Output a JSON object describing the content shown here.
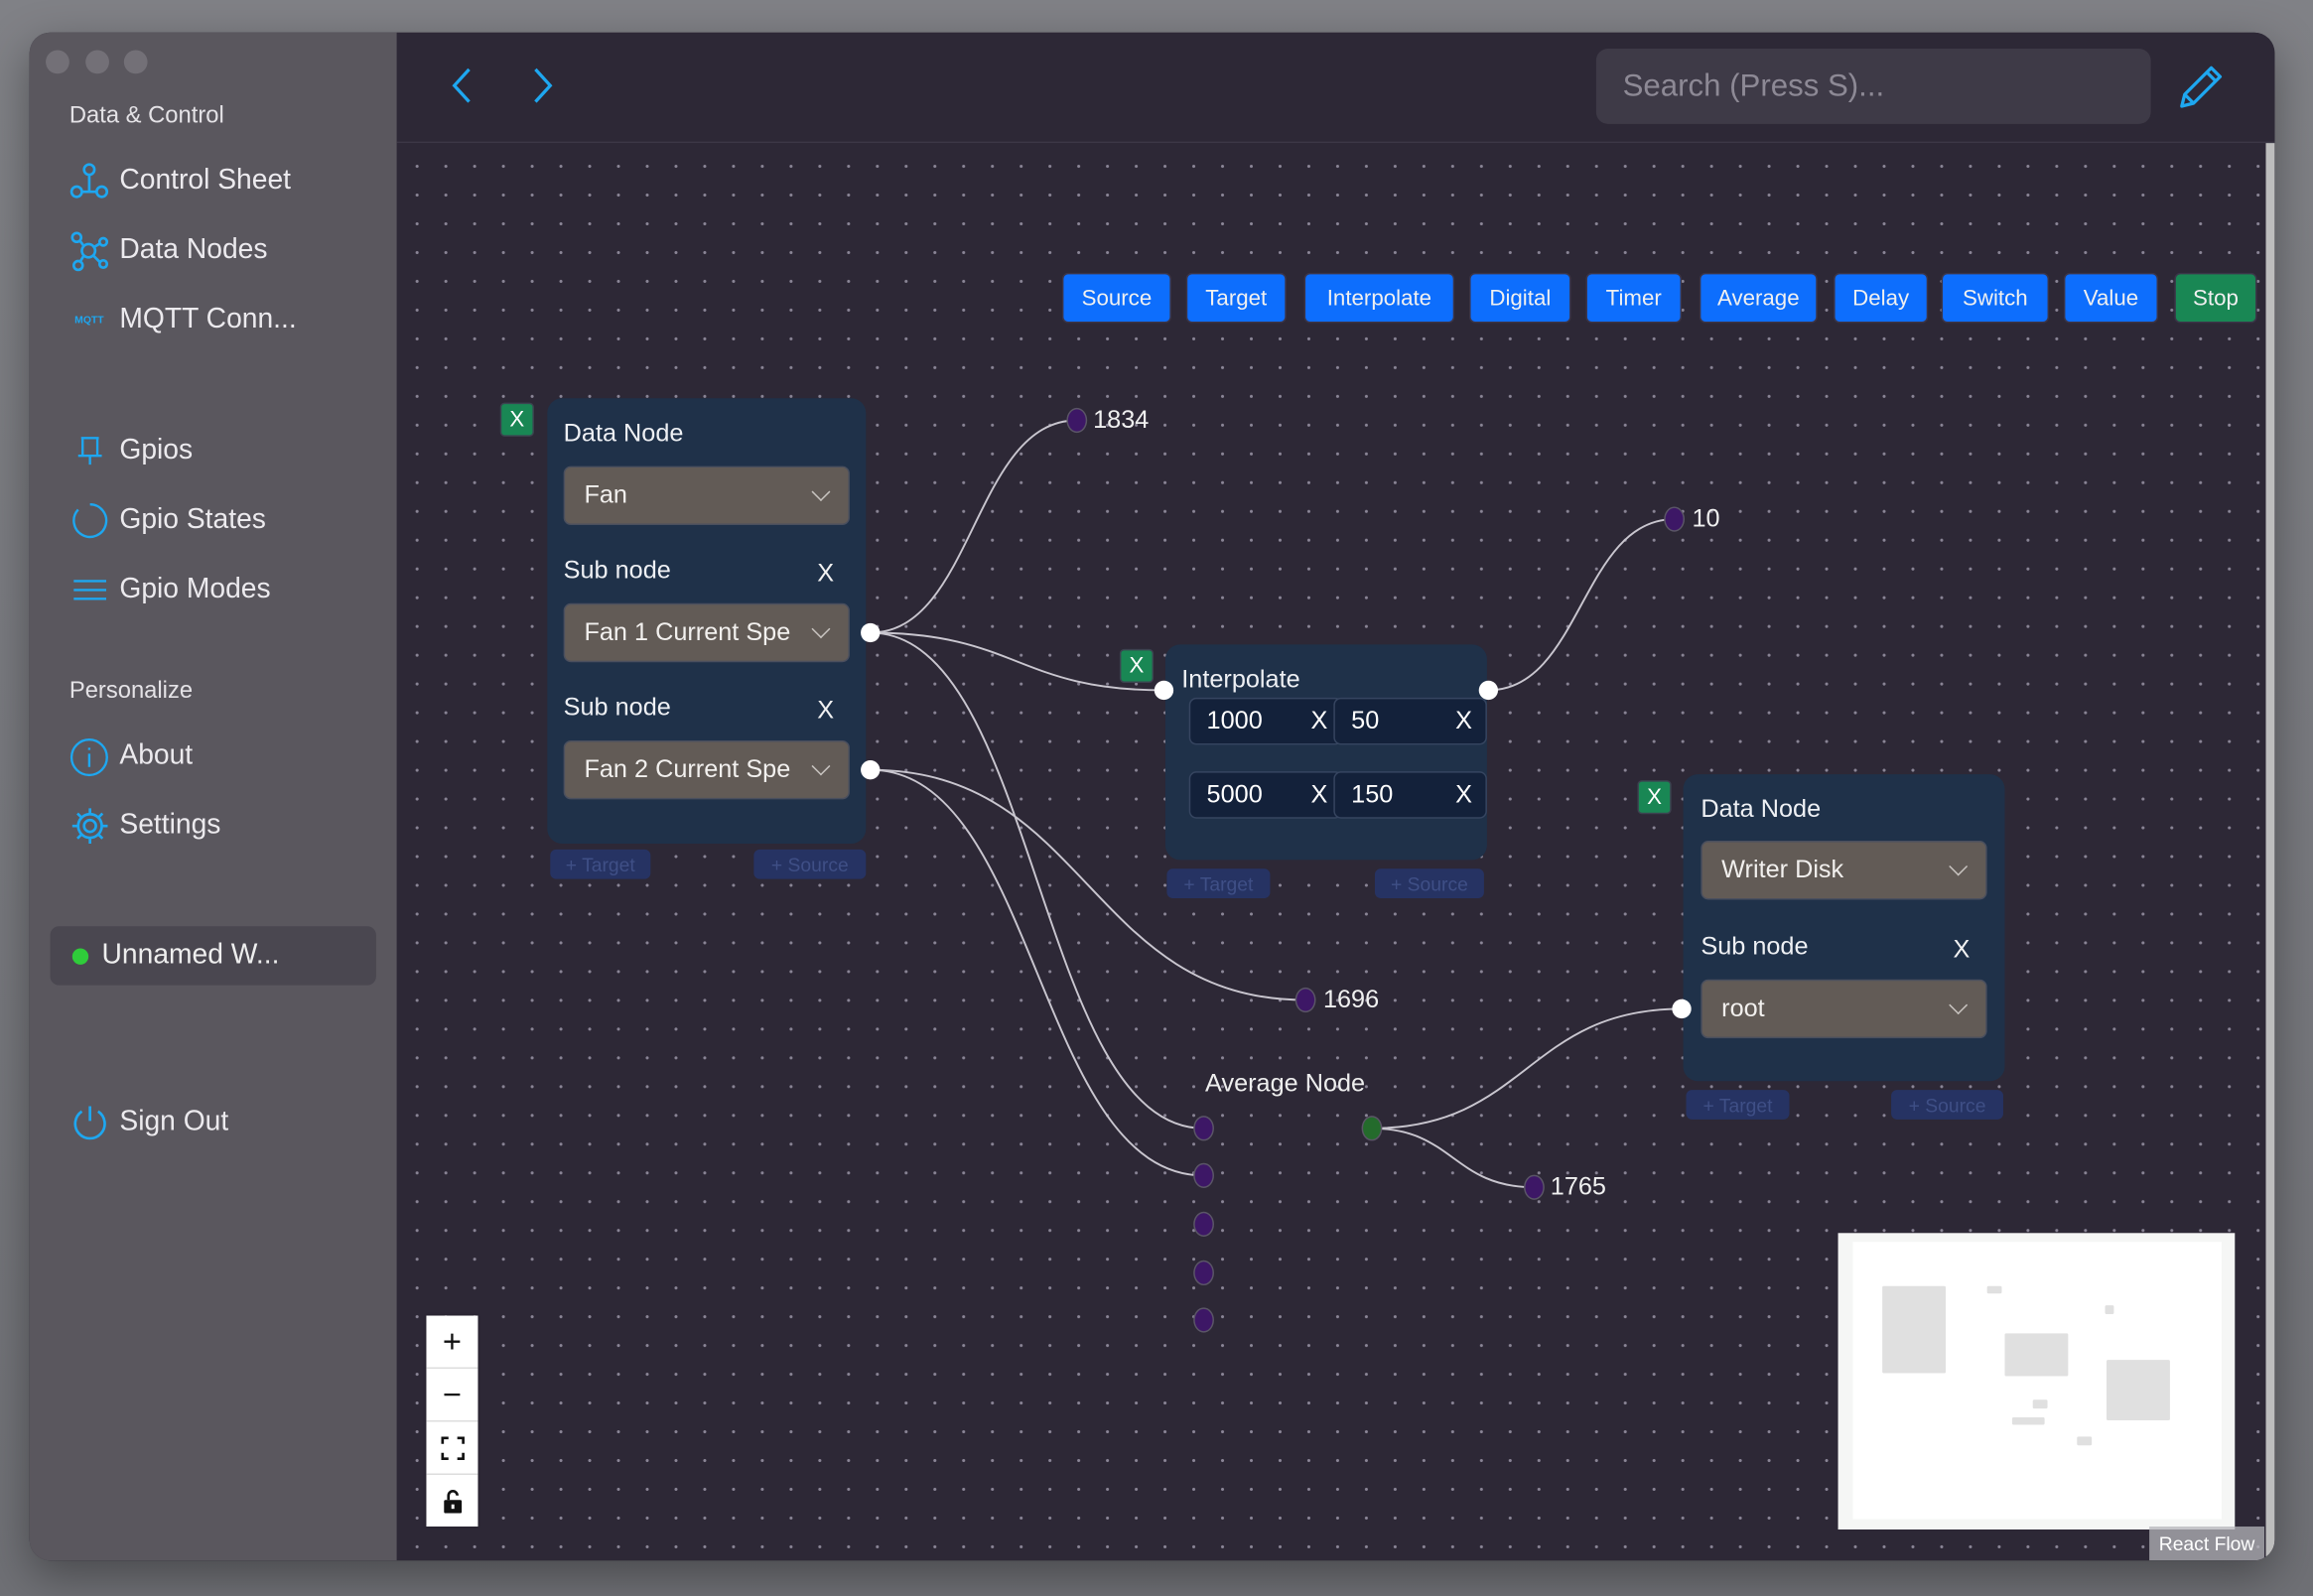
{
  "sidebar": {
    "section_data": "Data & Control",
    "items_top": [
      {
        "label": "Control Sheet",
        "icon": "control-sheet-icon"
      },
      {
        "label": "Data Nodes",
        "icon": "data-nodes-icon"
      },
      {
        "label": "MQTT Conn...",
        "icon": "mqtt-icon",
        "icon_text": "MQTT"
      }
    ],
    "items_gpio": [
      {
        "label": "Gpios",
        "icon": "bell-icon"
      },
      {
        "label": "Gpio States",
        "icon": "circle-icon"
      },
      {
        "label": "Gpio Modes",
        "icon": "lines-icon"
      }
    ],
    "section_personalize": "Personalize",
    "items_personal": [
      {
        "label": "About",
        "icon": "info-icon"
      },
      {
        "label": "Settings",
        "icon": "gear-icon"
      }
    ],
    "workspace": {
      "label": "Unnamed W...",
      "status_color": "#2fcc3a"
    },
    "sign_out": "Sign Out"
  },
  "header": {
    "search_placeholder": "Search (Press S)..."
  },
  "toolbar": {
    "buttons": [
      "Source",
      "Target",
      "Interpolate",
      "Digital",
      "Timer",
      "Average",
      "Delay",
      "Switch",
      "Value"
    ],
    "stop": "Stop",
    "accent": "#0d6efd",
    "stop_color": "#198754"
  },
  "nodes": {
    "data_node_1": {
      "delete": "X",
      "title": "Data Node",
      "device": "Fan",
      "sub_label": "Sub node",
      "sub_x": "X",
      "sub1": "Fan 1 Current Spe",
      "sub2": "Fan 2 Current Spe",
      "target": "+ Target",
      "source": "+ Source"
    },
    "interpolate": {
      "delete": "X",
      "title": "Interpolate",
      "rows": [
        [
          "1000",
          "50"
        ],
        [
          "5000",
          "150"
        ]
      ],
      "x": "X",
      "target": "+ Target",
      "source": "+ Source"
    },
    "data_node_2": {
      "delete": "X",
      "title": "Data Node",
      "device": "Writer Disk",
      "sub_label": "Sub node",
      "sub_x": "X",
      "sub1": "root",
      "target": "+ Target",
      "source": "+ Source"
    },
    "average": {
      "title": "Average Node"
    },
    "values": {
      "v1834": "1834",
      "v10": "10",
      "v1696": "1696",
      "v1765": "1765"
    }
  },
  "controls": {
    "zoom_in": "+",
    "zoom_out": "−"
  },
  "attribution": "React Flow"
}
